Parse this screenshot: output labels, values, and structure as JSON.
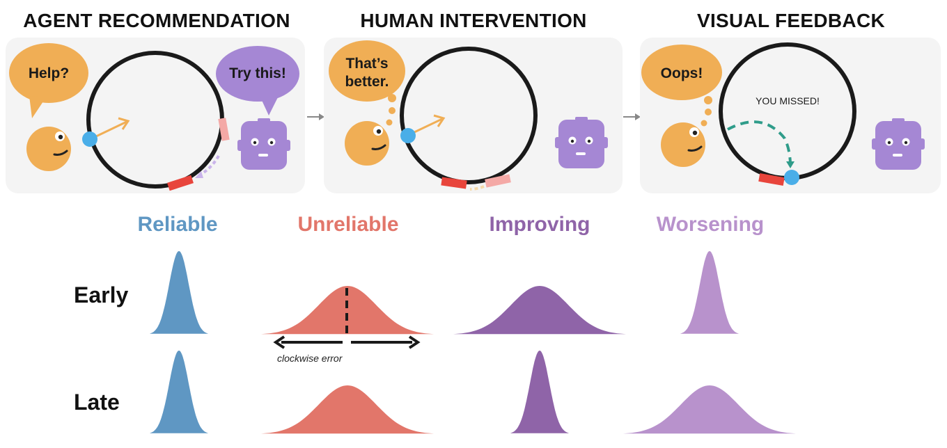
{
  "panels": [
    {
      "title": "AGENT RECOMMENDATION",
      "human_speech": "Help?",
      "robot_speech": "Try this!"
    },
    {
      "title": "HUMAN INTERVENTION",
      "human_speech_line1": "That’s",
      "human_speech_line2": "better."
    },
    {
      "title": "VISUAL FEEDBACK",
      "human_speech": "Oops!",
      "circle_text": "YOU MISSED!"
    }
  ],
  "categories": [
    {
      "label": "Reliable",
      "color": "#5f97c3"
    },
    {
      "label": "Unreliable",
      "color": "#e2766a"
    },
    {
      "label": "Improving",
      "color": "#8f64a8"
    },
    {
      "label": "Worsening",
      "color": "#b892cc"
    }
  ],
  "rows": [
    {
      "label": "Early",
      "spreads": [
        "narrow",
        "wide",
        "wide",
        "narrow"
      ]
    },
    {
      "label": "Late",
      "spreads": [
        "narrow",
        "wide",
        "narrow",
        "wide"
      ]
    }
  ],
  "annotation": {
    "text": "clockwise error"
  },
  "colors": {
    "human": "#f0ae55",
    "robot": "#a587d4",
    "robot_bubble": "#a587d4",
    "cursor": "#4aaee8",
    "target": "#e8453c",
    "feedback": "#2f9c8a"
  }
}
